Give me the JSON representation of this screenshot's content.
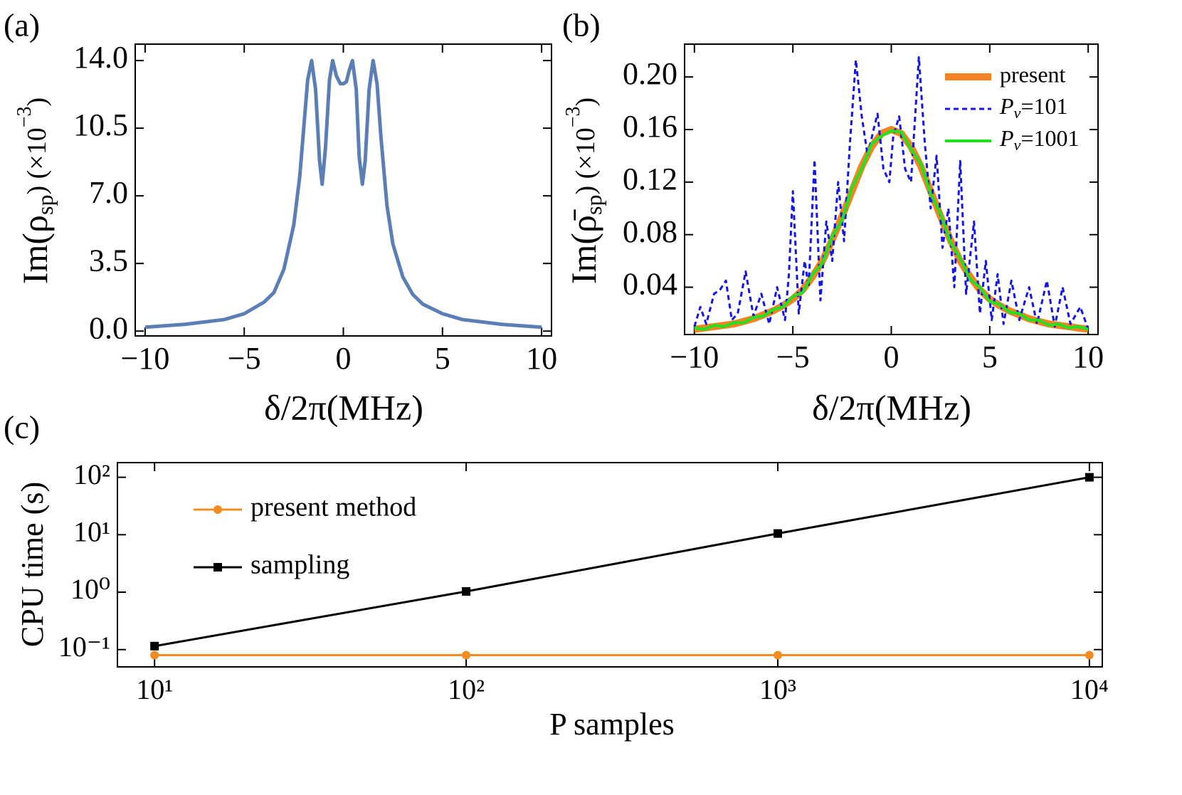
{
  "chart_data": [
    {
      "type": "line",
      "panel_label": "(a)",
      "xlabel": "δ/2π(MHz)",
      "ylabel": [
        "Im(ρ",
        "sp",
        ")  (×10",
        "−3",
        ")"
      ],
      "xlim": [
        -10.5,
        10.5
      ],
      "ylim": [
        -0.25,
        14.85
      ],
      "xticks": [
        {
          "value": -10,
          "label": "−10"
        },
        {
          "value": -5,
          "label": "−5"
        },
        0,
        5,
        10
      ],
      "yticks": [
        {
          "value": 0,
          "label": "0.0"
        },
        3.5,
        {
          "value": 7,
          "label": "7.0"
        },
        10.5,
        {
          "value": 14,
          "label": "14.0"
        }
      ],
      "series": [
        {
          "color": "#5b7fb5",
          "line_width": 5,
          "x": [
            -10,
            -8,
            -6,
            -5,
            -4,
            -3.5,
            -3,
            -2.5,
            -2.2,
            -2,
            -1.8,
            -1.6,
            -1.4,
            -1.2,
            -1.07,
            -0.9,
            -0.7,
            -0.54,
            -0.35,
            -0.15,
            0,
            0.15,
            0.3,
            0.46,
            0.65,
            0.8,
            0.96,
            1.1,
            1.3,
            1.5,
            1.7,
            1.9,
            2.2,
            2.5,
            3,
            3.5,
            4,
            5,
            6,
            8,
            10
          ],
          "values": [
            0.2,
            0.35,
            0.6,
            0.9,
            1.5,
            2.0,
            3.2,
            5.5,
            8.0,
            10.5,
            13.0,
            14.0,
            12.5,
            8.8,
            7.6,
            9.5,
            13.0,
            14.0,
            13.2,
            12.8,
            12.8,
            12.9,
            13.5,
            14.0,
            12.5,
            9.0,
            7.6,
            8.8,
            12.5,
            14.0,
            12.8,
            10.0,
            6.5,
            4.5,
            2.8,
            1.9,
            1.4,
            0.9,
            0.6,
            0.35,
            0.2
          ]
        }
      ]
    },
    {
      "type": "line",
      "panel_label": "(b)",
      "xlabel": "δ/2π(MHz)",
      "ylabel": [
        "Im(ρ̄",
        "sp",
        ")  (×10",
        "−3",
        ")"
      ],
      "xlim": [
        -10.5,
        10.5
      ],
      "ylim": [
        0.004,
        0.225
      ],
      "legend": "upper right",
      "xticks": [
        {
          "value": -10,
          "label": "−10"
        },
        {
          "value": -5,
          "label": "−5"
        },
        0,
        5,
        10
      ],
      "yticks": [
        0.04,
        0.08,
        0.12,
        0.16,
        {
          "value": 0.2,
          "label": "0.20"
        }
      ],
      "series": [
        {
          "name": "present",
          "color": "#f28522",
          "line_width": 10,
          "x": [
            -10,
            -9.5,
            -9,
            -8.5,
            -8,
            -7.5,
            -7,
            -6.5,
            -6,
            -5.5,
            -5,
            -4.5,
            -4,
            -3.5,
            -3,
            -2.5,
            -2,
            -1.5,
            -1,
            -0.5,
            0,
            0.5,
            1,
            1.5,
            2,
            2.5,
            3,
            3.5,
            4,
            4.5,
            5,
            5.5,
            6,
            6.5,
            7,
            7.5,
            8,
            8.5,
            9,
            9.5,
            10
          ],
          "values": [
            0.008,
            0.009,
            0.01,
            0.011,
            0.012,
            0.014,
            0.016,
            0.019,
            0.022,
            0.026,
            0.031,
            0.038,
            0.048,
            0.06,
            0.076,
            0.094,
            0.113,
            0.132,
            0.147,
            0.157,
            0.16,
            0.157,
            0.147,
            0.132,
            0.113,
            0.094,
            0.076,
            0.06,
            0.048,
            0.038,
            0.031,
            0.026,
            0.022,
            0.019,
            0.016,
            0.014,
            0.012,
            0.011,
            0.01,
            0.009,
            0.008
          ]
        },
        {
          "name": "Pv=101",
          "color": "#1414e6",
          "line_width": 3,
          "line_style": "dashed",
          "x": [
            -10,
            -9.7,
            -9.4,
            -9.0,
            -8.7,
            -8.4,
            -8.1,
            -7.8,
            -7.4,
            -7.0,
            -6.6,
            -6.2,
            -5.8,
            -5.4,
            -5.2,
            -5.0,
            -4.7,
            -4.4,
            -4.2,
            -3.9,
            -3.6,
            -3.3,
            -3.0,
            -2.7,
            -2.4,
            -2.1,
            -1.8,
            -1.5,
            -1.2,
            -0.9,
            -0.7,
            -0.4,
            -0.1,
            0.1,
            0.4,
            0.7,
            1.0,
            1.4,
            1.7,
            2.0,
            2.3,
            2.6,
            2.9,
            3.2,
            3.5,
            3.8,
            4.2,
            4.5,
            4.8,
            5.1,
            5.4,
            5.7,
            6.1,
            6.5,
            7.0,
            7.4,
            7.9,
            8.3,
            8.7,
            9.1,
            9.6,
            10
          ],
          "values": [
            0.01,
            0.025,
            0.012,
            0.035,
            0.038,
            0.045,
            0.015,
            0.02,
            0.052,
            0.018,
            0.035,
            0.012,
            0.04,
            0.015,
            0.05,
            0.113,
            0.02,
            0.06,
            0.04,
            0.137,
            0.03,
            0.09,
            0.06,
            0.12,
            0.075,
            0.15,
            0.213,
            0.17,
            0.14,
            0.16,
            0.172,
            0.13,
            0.12,
            0.155,
            0.17,
            0.13,
            0.12,
            0.215,
            0.15,
            0.1,
            0.14,
            0.07,
            0.1,
            0.04,
            0.136,
            0.035,
            0.09,
            0.02,
            0.06,
            0.015,
            0.05,
            0.012,
            0.045,
            0.015,
            0.04,
            0.012,
            0.045,
            0.01,
            0.04,
            0.012,
            0.025,
            0.008
          ]
        },
        {
          "name": "Pv=1001",
          "color": "#22e022",
          "line_width": 4,
          "x": [
            -10,
            -9.5,
            -9,
            -8.5,
            -8,
            -7.5,
            -7,
            -6.5,
            -6,
            -5.5,
            -5,
            -4.5,
            -4,
            -3.5,
            -3,
            -2.5,
            -2,
            -1.5,
            -1,
            -0.5,
            0,
            0.5,
            1,
            1.5,
            2,
            2.5,
            3,
            3.5,
            4,
            4.5,
            5,
            5.5,
            6,
            6.5,
            7,
            7.5,
            8,
            8.5,
            9,
            9.5,
            10
          ],
          "values": [
            0.009,
            0.008,
            0.011,
            0.01,
            0.013,
            0.013,
            0.017,
            0.018,
            0.023,
            0.025,
            0.033,
            0.036,
            0.05,
            0.058,
            0.079,
            0.091,
            0.116,
            0.13,
            0.149,
            0.155,
            0.159,
            0.158,
            0.145,
            0.134,
            0.111,
            0.096,
            0.074,
            0.062,
            0.046,
            0.04,
            0.029,
            0.027,
            0.021,
            0.02,
            0.015,
            0.015,
            0.011,
            0.012,
            0.009,
            0.01,
            0.008
          ]
        }
      ]
    },
    {
      "type": "line",
      "panel_label": "(c)",
      "log_x": true,
      "log_y": true,
      "xlabel": "P samples",
      "ylabel": "CPU time (s)",
      "legend": "upper left",
      "xlim": [
        7.6,
        11000
      ],
      "ylim": [
        0.05,
        180
      ],
      "xticks": [
        {
          "value": 10,
          "label": "10¹"
        },
        {
          "value": 100,
          "label": "10²"
        },
        {
          "value": 1000,
          "label": "10³"
        },
        {
          "value": 10000,
          "label": "10⁴"
        }
      ],
      "yticks": [
        {
          "value": 0.1,
          "label": "10⁻¹"
        },
        {
          "value": 1,
          "label": "10⁰"
        },
        {
          "value": 10,
          "label": "10¹"
        },
        {
          "value": 100,
          "label": "10²"
        }
      ],
      "x": [
        10,
        100,
        1000,
        10000
      ],
      "series": [
        {
          "name": "present method",
          "color": "#f08c22",
          "line_width": 3,
          "marker": "circle",
          "values": [
            0.08,
            0.08,
            0.08,
            0.08
          ]
        },
        {
          "name": "sampling",
          "color": "#000000",
          "line_width": 3,
          "marker": "square",
          "values": [
            0.115,
            1.03,
            10.5,
            100
          ]
        }
      ]
    }
  ]
}
